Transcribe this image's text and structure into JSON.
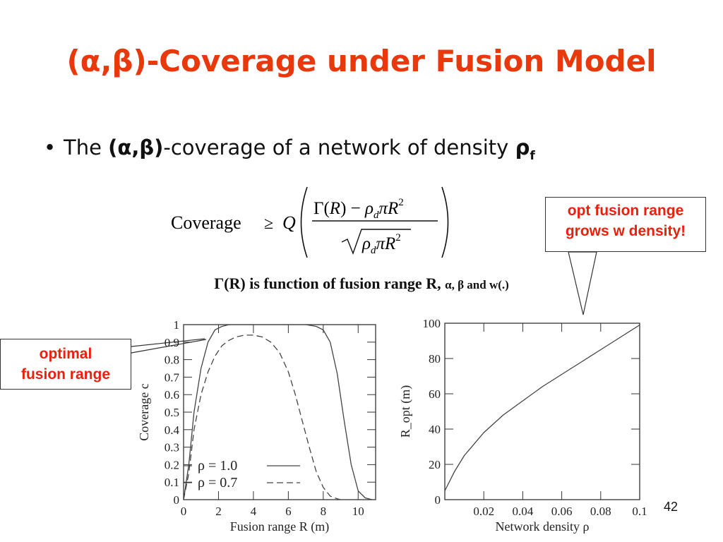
{
  "slide": {
    "title": "(α,β)-Coverage under Fusion Model",
    "bullet_prefix": "The ",
    "bullet_bold": "(α,β)",
    "bullet_suffix": "-coverage of a network of density ",
    "bullet_rho": "ρ",
    "bullet_sub": "f",
    "formula": {
      "lhs": "Coverage",
      "geq": "≥",
      "q": "Q",
      "numerator": "Γ(R) − ρdπR²",
      "denominator": "√ρdπR²"
    },
    "note_main": "Γ(R) is function of fusion range R, ",
    "note_small": "α, β and w(.)",
    "callout_right": [
      "opt fusion range",
      "grows w density!"
    ],
    "callout_left": [
      "optimal",
      "fusion range"
    ],
    "page_number": "42"
  },
  "chart_data": [
    {
      "type": "line",
      "xlabel": "Fusion range R (m)",
      "ylabel": "Coverage c",
      "xlim": [
        0,
        11
      ],
      "ylim": [
        0,
        1
      ],
      "x_ticks": [
        0,
        2,
        4,
        6,
        8,
        10
      ],
      "y_ticks": [
        0,
        0.1,
        0.2,
        0.3,
        0.4,
        0.5,
        0.6,
        0.7,
        0.8,
        0.9,
        1
      ],
      "y_tick_labels": [
        "0",
        "0.1",
        "0.2",
        "0.3",
        "0.4",
        "0.5",
        "0.6",
        "0.7",
        "0.8",
        "0.9",
        "1"
      ],
      "legend_placement": "bottom-left",
      "series": [
        {
          "name": "ρ = 1.0",
          "style": "solid",
          "x": [
            0,
            0.3,
            0.6,
            1.0,
            1.4,
            1.8,
            2.2,
            2.6,
            3.0,
            4.0,
            5.0,
            6.0,
            7.0,
            7.6,
            8.0,
            8.4,
            8.8,
            9.2,
            9.6,
            10.0,
            10.4,
            10.8
          ],
          "y": [
            0,
            0.2,
            0.5,
            0.75,
            0.9,
            0.97,
            0.99,
            1.0,
            1.0,
            1.0,
            1.0,
            1.0,
            1.0,
            0.99,
            0.97,
            0.9,
            0.72,
            0.45,
            0.2,
            0.05,
            0.01,
            0
          ]
        },
        {
          "name": "ρ = 0.7",
          "style": "dashed",
          "x": [
            0,
            0.3,
            0.6,
            1.0,
            1.4,
            1.8,
            2.2,
            2.6,
            3.0,
            3.5,
            4.0,
            4.5,
            5.0,
            5.5,
            6.0,
            6.4,
            6.8,
            7.2,
            7.6,
            8.0,
            8.4,
            8.8,
            9.0
          ],
          "y": [
            0,
            0.15,
            0.4,
            0.6,
            0.73,
            0.82,
            0.88,
            0.91,
            0.93,
            0.94,
            0.94,
            0.93,
            0.9,
            0.84,
            0.73,
            0.6,
            0.45,
            0.3,
            0.16,
            0.07,
            0.02,
            0.005,
            0
          ]
        }
      ]
    },
    {
      "type": "line",
      "xlabel": "Network density ρ",
      "ylabel": "R_opt (m)",
      "xlim": [
        0,
        0.1
      ],
      "ylim": [
        0,
        100
      ],
      "x_ticks": [
        0.02,
        0.04,
        0.06,
        0.08,
        0.1
      ],
      "x_tick_labels": [
        "0.02",
        "0.04",
        "0.06",
        "0.08",
        "0.1"
      ],
      "y_ticks": [
        0,
        20,
        40,
        60,
        80,
        100
      ],
      "series": [
        {
          "style": "solid",
          "x": [
            0,
            0.005,
            0.01,
            0.02,
            0.03,
            0.04,
            0.05,
            0.06,
            0.07,
            0.08,
            0.09,
            0.1
          ],
          "y": [
            5,
            16,
            25,
            38,
            48,
            56,
            64,
            71,
            78,
            85,
            92,
            99
          ]
        }
      ]
    }
  ]
}
